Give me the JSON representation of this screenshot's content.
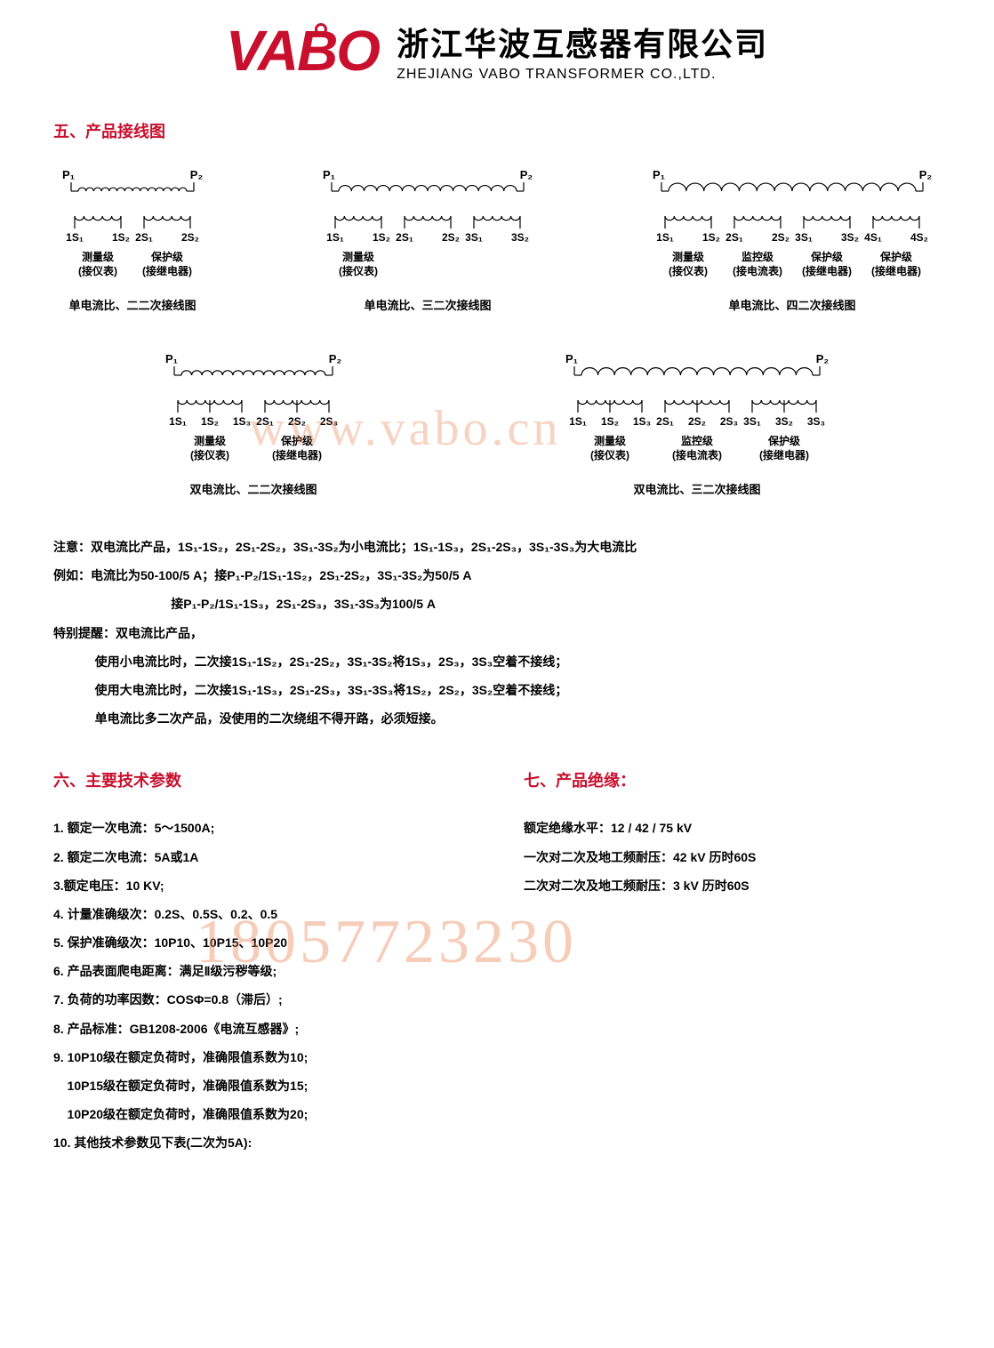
{
  "header": {
    "logo_text": "VABO",
    "company_cn": "浙江华波互感器有限公司",
    "company_en": "ZHEJIANG VABO TRANSFORMER CO.,LTD."
  },
  "section5_title": "五、产品接线图",
  "diagrams_row1": [
    {
      "primary": [
        "P₁",
        "P₂"
      ],
      "secondaries": [
        {
          "terms": [
            "1S₁",
            "1S₂"
          ],
          "label1": "测量级",
          "label2": "(接仪表)"
        },
        {
          "terms": [
            "2S₁",
            "2S₂"
          ],
          "label1": "保护级",
          "label2": "(接继电器)"
        }
      ],
      "caption": "单电流比、二二次接线图"
    },
    {
      "primary": [
        "P₁",
        "P₂"
      ],
      "secondaries": [
        {
          "terms": [
            "1S₁",
            "1S₂"
          ],
          "label1": "测量级",
          "label2": "(接仪表)"
        },
        {
          "terms": [
            "2S₁",
            "2S₂"
          ],
          "label1": "",
          "label2": ""
        },
        {
          "terms": [
            "3S₁",
            "3S₂"
          ],
          "label1": "",
          "label2": ""
        }
      ],
      "caption": "单电流比、三二次接线图"
    },
    {
      "primary": [
        "P₁",
        "P₂"
      ],
      "secondaries": [
        {
          "terms": [
            "1S₁",
            "1S₂"
          ],
          "label1": "测量级",
          "label2": "(接仪表)"
        },
        {
          "terms": [
            "2S₁",
            "2S₂"
          ],
          "label1": "监控级",
          "label2": "(接电流表)"
        },
        {
          "terms": [
            "3S₁",
            "3S₂"
          ],
          "label1": "保护级",
          "label2": "(接继电器)"
        },
        {
          "terms": [
            "4S₁",
            "4S₂"
          ],
          "label1": "保护级",
          "label2": "(接继电器)"
        }
      ],
      "caption": "单电流比、四二次接线图"
    }
  ],
  "diagrams_row2": [
    {
      "primary": [
        "P₁",
        "P₂"
      ],
      "secondaries": [
        {
          "terms": [
            "1S₁",
            "1S₂",
            "1S₃"
          ],
          "label1": "测量级",
          "label2": "(接仪表)"
        },
        {
          "terms": [
            "2S₁",
            "2S₂",
            "2S₃"
          ],
          "label1": "保护级",
          "label2": "(接继电器)"
        }
      ],
      "caption": "双电流比、二二次接线图"
    },
    {
      "primary": [
        "P₁",
        "P₂"
      ],
      "secondaries": [
        {
          "terms": [
            "1S₁",
            "1S₂",
            "1S₃"
          ],
          "label1": "测量级",
          "label2": "(接仪表)"
        },
        {
          "terms": [
            "2S₁",
            "2S₂",
            "2S₃"
          ],
          "label1": "监控级",
          "label2": "(接电流表)"
        },
        {
          "terms": [
            "3S₁",
            "3S₂",
            "3S₃"
          ],
          "label1": "保护级",
          "label2": "(接继电器)"
        }
      ],
      "caption": "双电流比、三二次接线图"
    }
  ],
  "notes_lines": [
    "注意：双电流比产品，1S₁-1S₂，2S₁-2S₂，3S₁-3S₂为小电流比；1S₁-1S₃，2S₁-2S₃，3S₁-3S₃为大电流比",
    "例如：电流比为50-100/5 A；接P₁-P₂/1S₁-1S₂，2S₁-2S₂，3S₁-3S₂为50/5 A",
    "                                  接P₁-P₂/1S₁-1S₃，2S₁-2S₃，3S₁-3S₃为100/5 A",
    "特别提醒：双电流比产品，",
    "            使用小电流比时，二次接1S₁-1S₂，2S₁-2S₂，3S₁-3S₂将1S₃，2S₃，3S₃空着不接线；",
    "            使用大电流比时，二次接1S₁-1S₃，2S₁-2S₃，3S₁-3S₃将1S₂，2S₂，3S₂空着不接线；",
    "            单电流比多二次产品，没使用的二次绕组不得开路，必须短接。"
  ],
  "section6_title": "六、主要技术参数",
  "section7_title": "七、产品绝缘：",
  "specs6": [
    "1. 额定一次电流：5～1500A;",
    "2. 额定二次电流：5A或1A",
    "3.额定电压：10 KV;",
    "4. 计量准确级次：0.2S、0.5S、0.2、0.5",
    "5. 保护准确级次：10P10、10P15、10P20",
    "6. 产品表面爬电距离：满足Ⅱ级污秽等级;",
    "7. 负荷的功率因数：COSΦ=0.8（滞后）;",
    "8. 产品标准：GB1208-2006《电流互感器》;",
    "9. 10P10级在额定负荷时，准确限值系数为10;",
    "    10P15级在额定负荷时，准确限值系数为15;",
    "    10P20级在额定负荷时，准确限值系数为20;",
    "10. 其他技术参数见下表(二次为5A):"
  ],
  "specs7": [
    "额定绝缘水平：12 / 42 / 75  kV",
    "一次对二次及地工频耐压：42 kV  历时60S",
    "二次对二次及地工频耐压：3  kV  历时60S"
  ],
  "watermarks": {
    "url": "www.vabo.cn",
    "phone": "18057723230"
  },
  "colors": {
    "brand_red": "#c8102e",
    "text_black": "#000000",
    "watermark": "rgba(230,130,80,0.4)"
  }
}
